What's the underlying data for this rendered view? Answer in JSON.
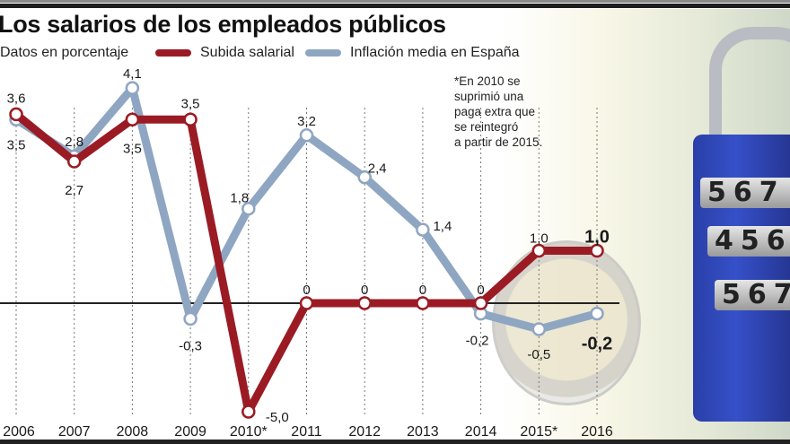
{
  "chart_data": {
    "type": "line",
    "title": "Los salarios de los empleados públicos",
    "subtitle": "Datos en porcentaje",
    "xlabel": "",
    "ylabel": "",
    "categories": [
      "2006",
      "2007",
      "2008",
      "2009",
      "2010*",
      "2011",
      "2012",
      "2013",
      "2014",
      "2015*",
      "2016"
    ],
    "series": [
      {
        "name": "Subida salarial",
        "color": "#9b1b24",
        "values": [
          3.6,
          2.7,
          3.5,
          3.5,
          -5.0,
          0,
          0,
          0,
          0,
          1.0,
          1.0
        ],
        "labels": [
          "3,6",
          "2,7",
          "3,5",
          "3,5",
          "-5,0",
          "0",
          "0",
          "0",
          "0",
          "1,0",
          "1,0"
        ]
      },
      {
        "name": "Inflación media en España",
        "color": "#8fa6c2",
        "values": [
          3.5,
          2.8,
          4.1,
          -0.3,
          1.8,
          3.2,
          2.4,
          1.4,
          -0.2,
          -0.5,
          -0.2
        ],
        "labels": [
          "3,5",
          "2,8",
          "4,1",
          "-0,3",
          "1,8",
          "3,2",
          "2,4",
          "1,4",
          "-0,2",
          "-0,5",
          "-0,2"
        ]
      }
    ],
    "legend": "top",
    "grid": false,
    "baseline": 0,
    "annotation": "*En 2010 se suprimió una paga extra que se reintegró a partir de 2015."
  },
  "header": {
    "title": "Los salarios de los empleados públicos",
    "subtitle": "Datos en porcentaje"
  },
  "legend": [
    {
      "label": "Subida salarial",
      "color": "#9b1b24"
    },
    {
      "label": "Inflación media en España",
      "color": "#8fa6c2"
    }
  ],
  "note": {
    "lines": [
      "*En 2010 se",
      "suprimió una",
      "paga extra que",
      "se reintegró",
      "a partir de 2015."
    ]
  },
  "background": {
    "lock_dials": [
      "567",
      "456",
      "567"
    ]
  }
}
